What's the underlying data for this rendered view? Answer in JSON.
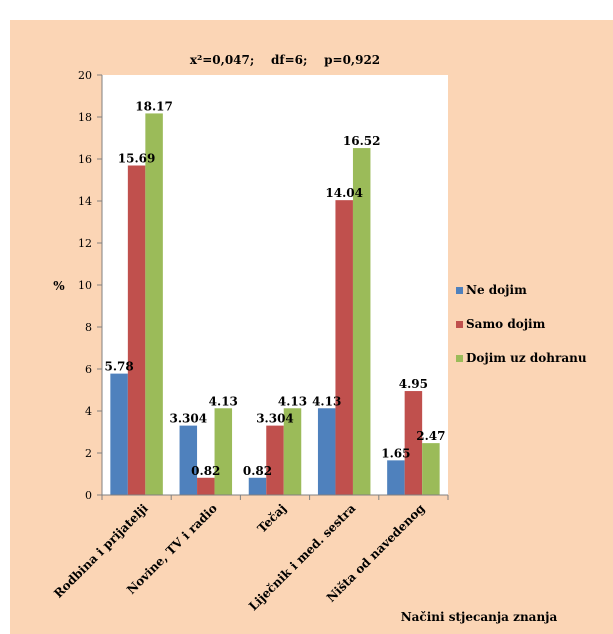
{
  "chart_data": {
    "type": "bar",
    "title": "x²=0,047;    df=6;    p=0,922",
    "xlabel": "Načini stjecanja znanja",
    "ylabel": "%",
    "ylim": [
      0,
      20
    ],
    "yticks": [
      "0",
      "2",
      "4",
      "6",
      "8",
      "10",
      "12",
      "14",
      "16",
      "18",
      "20"
    ],
    "grid": false,
    "legend_position": "right",
    "categories": [
      "Rodbina i prijatelji",
      "Novine, TV i radio",
      "Tečaj",
      "Liječnik i med. sestra",
      "Ništa od navedenog"
    ],
    "series": [
      {
        "name": "Ne dojim",
        "color": "#4f81bd",
        "values": [
          5.78,
          3.304,
          0.82,
          4.13,
          1.65
        ],
        "labels": [
          "5.78",
          "3.304",
          "0.82",
          "4.13",
          "1.65"
        ]
      },
      {
        "name": "Samo dojim",
        "color": "#c0504d",
        "values": [
          15.69,
          0.82,
          3.304,
          14.04,
          4.95
        ],
        "labels": [
          "15.69",
          "0.82",
          "3.304",
          "14.04",
          "4.95"
        ]
      },
      {
        "name": "Dojim uz dohranu",
        "color": "#9bbb59",
        "values": [
          18.17,
          4.13,
          4.13,
          16.52,
          2.47
        ],
        "labels": [
          "18.17",
          "4.13",
          "4.13",
          "16.52",
          "2.47"
        ]
      }
    ]
  },
  "colors": {
    "background": "#fbd5b5",
    "plot_area": "#ffffff"
  }
}
